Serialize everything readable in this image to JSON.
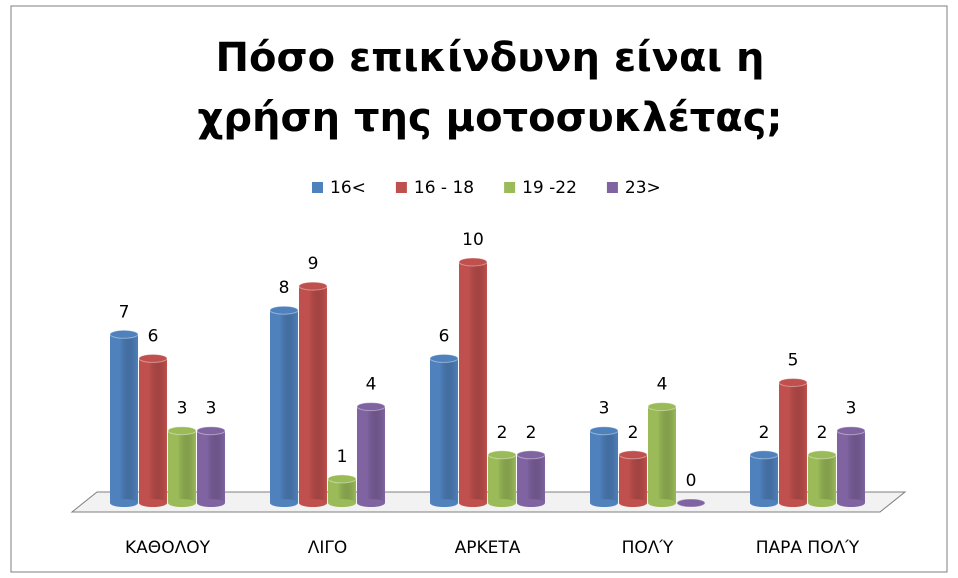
{
  "chart_data": {
    "type": "bar3d",
    "title": "Πόσο επικίνδυνη είναι η χρήση της μοτοσυκλέτας;",
    "categories": [
      "ΚΑΘΟΛΟΥ",
      "ΛΙΓΟ",
      "ΑΡΚΕΤΑ",
      "ΠΟΛΎ",
      "ΠΑΡΑ ΠΟΛΎ"
    ],
    "series": [
      {
        "name": "16<",
        "color": "#4f81bd",
        "values": [
          7,
          8,
          6,
          3,
          2
        ]
      },
      {
        "name": "16 - 18",
        "color": "#c0504d",
        "values": [
          6,
          9,
          10,
          2,
          5
        ]
      },
      {
        "name": "19 -22",
        "color": "#9bbb59",
        "values": [
          3,
          1,
          2,
          4,
          2
        ]
      },
      {
        "name": "23>",
        "color": "#8064a2",
        "values": [
          3,
          4,
          2,
          0,
          3
        ]
      }
    ],
    "legend": "top"
  }
}
